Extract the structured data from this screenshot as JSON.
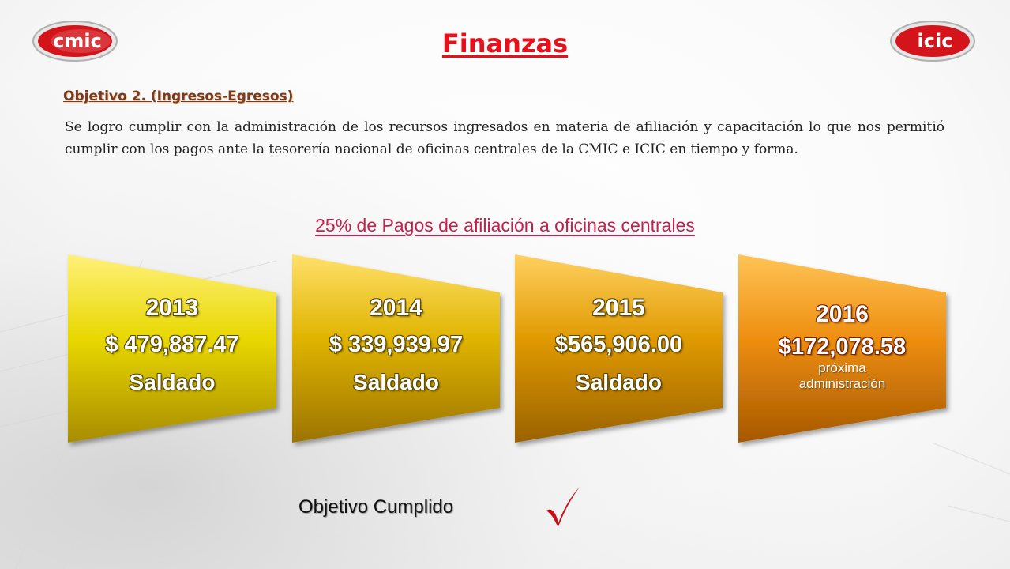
{
  "header": {
    "title": "Finanzas",
    "logo_left": "cmic",
    "logo_right": "icic"
  },
  "objective": {
    "heading": "Objetivo 2. (Ingresos-Egresos)",
    "paragraph": "Se logro cumplir con la administración de los recursos ingresados en materia de afiliación y capacitación lo que nos permitió cumplir con los pagos ante la tesorería nacional de oficinas centrales de la CMIC e ICIC en tiempo y forma."
  },
  "section": {
    "subtitle": "25% de Pagos de afiliación a oficinas centrales"
  },
  "cards": [
    {
      "year": "2013",
      "amount": "$ 479,887.47",
      "status": "Saldado",
      "note": ""
    },
    {
      "year": "2014",
      "amount": "$ 339,939.97",
      "status": "Saldado",
      "note": ""
    },
    {
      "year": "2015",
      "amount": "$565,906.00",
      "status": "Saldado",
      "note": ""
    },
    {
      "year": "2016",
      "amount": "$172,078.58",
      "status": "",
      "note": "próxima administración"
    }
  ],
  "footer": {
    "result": "Objetivo Cumplido",
    "check_icon": "check-mark-icon"
  },
  "colors": {
    "title_red": "#e8111b",
    "subtitle_magenta": "#c3214b",
    "card_1": "#e8d800",
    "card_2": "#e0b400",
    "card_3": "#e09a00",
    "card_4": "#ee8e10"
  }
}
